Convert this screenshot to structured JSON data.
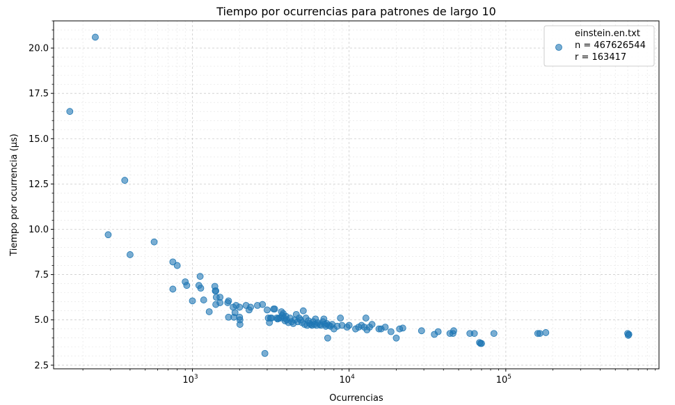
{
  "chart_data": {
    "type": "scatter",
    "title": "Tiempo por ocurrencias para patrones de largo 10",
    "xlabel": "Ocurrencias",
    "ylabel": "Tiempo por ocurrencia (μs)",
    "xscale": "log",
    "xlim": [
      130,
      950000
    ],
    "ylim": [
      2.3,
      21.5
    ],
    "x_ticks": [
      {
        "value": 1000,
        "base": "10",
        "exp": "3"
      },
      {
        "value": 10000,
        "base": "10",
        "exp": "4"
      },
      {
        "value": 100000,
        "base": "10",
        "exp": "5"
      }
    ],
    "y_ticks": [
      "2.5",
      "5.0",
      "7.5",
      "10.0",
      "12.5",
      "15.0",
      "17.5",
      "20.0"
    ],
    "grid": true,
    "legend": {
      "placement": "top-right",
      "lines": [
        "einstein.en.txt",
        "n = 467626544",
        "r = 163417"
      ]
    },
    "color": "#1f77b4",
    "series": [
      {
        "name": "einstein.en.txt",
        "points": [
          [
            165,
            16.5
          ],
          [
            240,
            20.6
          ],
          [
            290,
            9.7
          ],
          [
            370,
            12.7
          ],
          [
            400,
            8.6
          ],
          [
            570,
            9.3
          ],
          [
            750,
            8.2
          ],
          [
            800,
            8.0
          ],
          [
            750,
            6.7
          ],
          [
            900,
            7.1
          ],
          [
            920,
            6.9
          ],
          [
            1000,
            6.05
          ],
          [
            1100,
            6.9
          ],
          [
            1120,
            7.4
          ],
          [
            1130,
            6.75
          ],
          [
            1180,
            6.1
          ],
          [
            1280,
            5.45
          ],
          [
            1390,
            6.85
          ],
          [
            1400,
            6.6
          ],
          [
            1410,
            6.6
          ],
          [
            1420,
            6.25
          ],
          [
            1410,
            5.85
          ],
          [
            1500,
            5.95
          ],
          [
            1500,
            6.25
          ],
          [
            1680,
            5.95
          ],
          [
            1700,
            6.05
          ],
          [
            1700,
            5.15
          ],
          [
            1820,
            5.7
          ],
          [
            1840,
            5.15
          ],
          [
            1870,
            5.4
          ],
          [
            1900,
            5.8
          ],
          [
            2000,
            5.7
          ],
          [
            2000,
            5.15
          ],
          [
            2010,
            5.0
          ],
          [
            2010,
            4.75
          ],
          [
            2200,
            5.8
          ],
          [
            2300,
            5.55
          ],
          [
            2350,
            5.7
          ],
          [
            2600,
            5.8
          ],
          [
            2800,
            5.85
          ],
          [
            2900,
            3.15
          ],
          [
            3000,
            5.55
          ],
          [
            3050,
            5.1
          ],
          [
            3100,
            4.85
          ],
          [
            3150,
            5.1
          ],
          [
            3200,
            5.1
          ],
          [
            3300,
            5.6
          ],
          [
            3350,
            5.6
          ],
          [
            3450,
            5.1
          ],
          [
            3500,
            5.05
          ],
          [
            3550,
            5.1
          ],
          [
            3650,
            5.1
          ],
          [
            3700,
            5.45
          ],
          [
            3750,
            5.25
          ],
          [
            3800,
            5.35
          ],
          [
            3850,
            5.1
          ],
          [
            3900,
            4.95
          ],
          [
            3950,
            5.2
          ],
          [
            4000,
            5.0
          ],
          [
            4100,
            4.85
          ],
          [
            4200,
            5.1
          ],
          [
            4300,
            4.9
          ],
          [
            4400,
            4.8
          ],
          [
            4500,
            5.0
          ],
          [
            4600,
            5.3
          ],
          [
            4700,
            4.9
          ],
          [
            4800,
            5.1
          ],
          [
            4900,
            5.0
          ],
          [
            5000,
            4.85
          ],
          [
            5100,
            5.5
          ],
          [
            5200,
            4.75
          ],
          [
            5300,
            5.1
          ],
          [
            5400,
            4.7
          ],
          [
            5500,
            4.95
          ],
          [
            5600,
            4.8
          ],
          [
            5700,
            4.75
          ],
          [
            5800,
            4.7
          ],
          [
            5900,
            4.9
          ],
          [
            6000,
            4.75
          ],
          [
            6100,
            5.05
          ],
          [
            6200,
            4.7
          ],
          [
            6300,
            4.85
          ],
          [
            6500,
            4.75
          ],
          [
            6600,
            4.7
          ],
          [
            6800,
            4.9
          ],
          [
            6900,
            5.05
          ],
          [
            7000,
            4.75
          ],
          [
            7100,
            4.65
          ],
          [
            7200,
            4.8
          ],
          [
            7300,
            4.0
          ],
          [
            7400,
            4.7
          ],
          [
            7600,
            4.65
          ],
          [
            7800,
            4.75
          ],
          [
            8000,
            4.5
          ],
          [
            8400,
            4.65
          ],
          [
            8800,
            5.1
          ],
          [
            9000,
            4.7
          ],
          [
            9700,
            4.6
          ],
          [
            10000,
            4.7
          ],
          [
            11000,
            4.5
          ],
          [
            11500,
            4.6
          ],
          [
            12000,
            4.7
          ],
          [
            12500,
            4.6
          ],
          [
            12800,
            5.1
          ],
          [
            13000,
            4.45
          ],
          [
            13500,
            4.6
          ],
          [
            14000,
            4.75
          ],
          [
            15500,
            4.5
          ],
          [
            16000,
            4.5
          ],
          [
            17000,
            4.6
          ],
          [
            18500,
            4.35
          ],
          [
            20000,
            4.0
          ],
          [
            21000,
            4.5
          ],
          [
            22000,
            4.55
          ],
          [
            29000,
            4.4
          ],
          [
            35000,
            4.2
          ],
          [
            37000,
            4.35
          ],
          [
            44000,
            4.25
          ],
          [
            46000,
            4.25
          ],
          [
            46500,
            4.4
          ],
          [
            59000,
            4.25
          ],
          [
            63000,
            4.25
          ],
          [
            68000,
            3.75
          ],
          [
            69000,
            3.7
          ],
          [
            70000,
            3.7
          ],
          [
            84000,
            4.25
          ],
          [
            160000,
            4.25
          ],
          [
            165000,
            4.25
          ],
          [
            180000,
            4.3
          ],
          [
            600000,
            4.25
          ],
          [
            605000,
            4.15
          ],
          [
            610000,
            4.2
          ]
        ]
      }
    ]
  }
}
